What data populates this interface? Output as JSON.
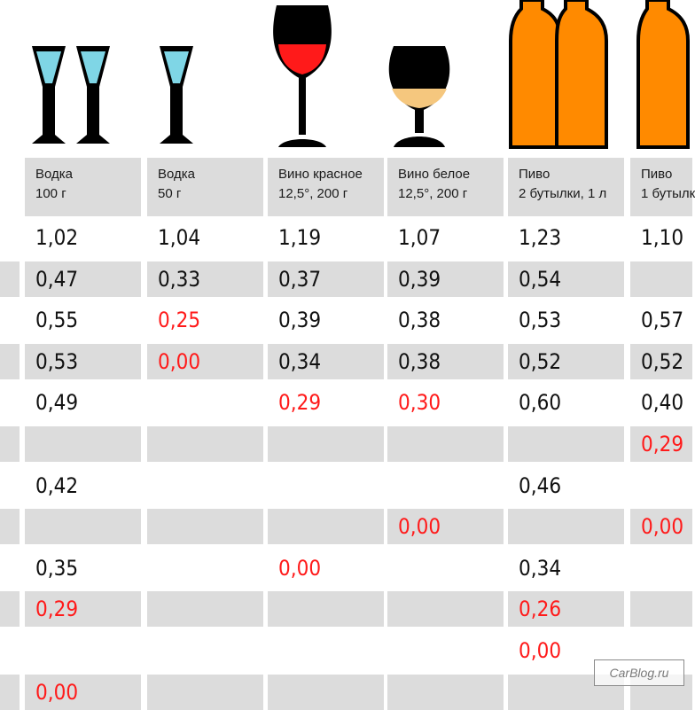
{
  "columns": [
    {
      "name": "Водка",
      "detail": "100 г",
      "icon": "two-vodka-shot-glasses-icon"
    },
    {
      "name": "Водка",
      "detail": "50 г",
      "icon": "vodka-shot-glass-icon"
    },
    {
      "name": "Вино красное",
      "detail": "12,5°, 200 г",
      "icon": "red-wine-glass-icon"
    },
    {
      "name": "Вино белое",
      "detail": "12,5°, 200 г",
      "icon": "white-wine-glass-icon"
    },
    {
      "name": "Пиво",
      "detail": "2 бутылки, 1 л",
      "icon": "two-beer-bottles-icon"
    },
    {
      "name": "Пиво",
      "detail": "1 бутылк",
      "icon": "beer-bottle-icon"
    }
  ],
  "rows": [
    [
      "1,02",
      "1,04",
      "1,19",
      "1,07",
      "1,23",
      "1,10"
    ],
    [
      "0,47",
      "0,33",
      "0,37",
      "0,39",
      "0,54",
      ""
    ],
    [
      "0,55",
      "0,25",
      "0,39",
      "0,38",
      "0,53",
      "0,57"
    ],
    [
      "0,53",
      "0,00",
      "0,34",
      "0,38",
      "0,52",
      "0,52"
    ],
    [
      "0,49",
      "",
      "0,29",
      "0,30",
      "0,60",
      "0,40"
    ],
    [
      "",
      "",
      "",
      "",
      "",
      "0,29"
    ],
    [
      "0,42",
      "",
      "",
      "",
      "0,46",
      ""
    ],
    [
      "",
      "",
      "",
      "0,00",
      "",
      "0,00"
    ],
    [
      "0,35",
      "",
      "0,00",
      "",
      "0,34",
      ""
    ],
    [
      "0,29",
      "",
      "",
      "",
      "0,26",
      ""
    ],
    [
      "",
      "",
      "",
      "",
      "0,00",
      ""
    ],
    [
      "0,00",
      "",
      "",
      "",
      "",
      ""
    ]
  ],
  "highlighted_values": [
    {
      "row": 2,
      "col": 1
    },
    {
      "row": 3,
      "col": 1
    },
    {
      "row": 4,
      "col": 2
    },
    {
      "row": 4,
      "col": 3
    },
    {
      "row": 5,
      "col": 5
    },
    {
      "row": 7,
      "col": 3
    },
    {
      "row": 7,
      "col": 5
    },
    {
      "row": 8,
      "col": 2
    },
    {
      "row": 9,
      "col": 0
    },
    {
      "row": 9,
      "col": 4
    },
    {
      "row": 10,
      "col": 4
    },
    {
      "row": 11,
      "col": 0
    }
  ],
  "colors": {
    "highlight": "#ff1a1a",
    "shaded_row": "#dcdcdc",
    "vodka_liquid": "#7fd6e6",
    "red_wine": "#ff1a1a",
    "white_wine": "#f5c77e",
    "beer_bottle": "#ff8a00",
    "glass_outline": "#000000"
  },
  "watermark": "CarBlog.ru"
}
